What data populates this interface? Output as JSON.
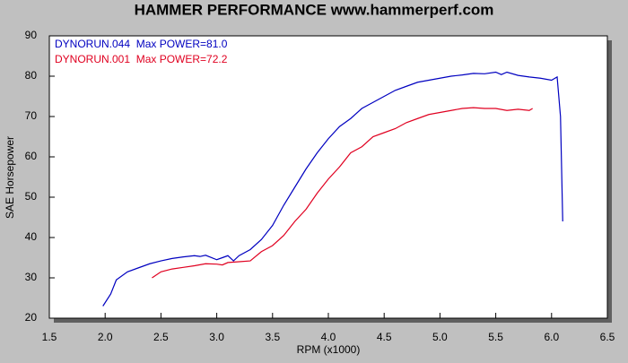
{
  "chart_data": {
    "type": "line",
    "title": "HAMMER PERFORMANCE www.hammerperf.com",
    "x_label": "RPM (x1000)",
    "y_label": "SAE Horsepower",
    "xlim": [
      1.5,
      6.5
    ],
    "xticks": [
      1.5,
      {
        "value": 2,
        "label": "2.0"
      },
      2.5,
      {
        "value": 3,
        "label": "3.0"
      },
      3.5,
      {
        "value": 4,
        "label": "4.0"
      },
      4.5,
      {
        "value": 5,
        "label": "5.0"
      },
      5.5,
      {
        "value": 6,
        "label": "6.0"
      },
      6.5
    ],
    "ylim": [
      20,
      90
    ],
    "yticks": [
      20,
      30,
      40,
      50,
      60,
      70,
      80,
      90
    ],
    "series": [
      {
        "name": "DYNORUN.044  Max POWER=81.0",
        "color": "#0000c0",
        "x": [
          1.98,
          2.05,
          2.1,
          2.2,
          2.3,
          2.4,
          2.5,
          2.6,
          2.7,
          2.8,
          2.85,
          2.9,
          3.0,
          3.05,
          3.1,
          3.15,
          3.2,
          3.3,
          3.4,
          3.5,
          3.6,
          3.7,
          3.8,
          3.9,
          4.0,
          4.1,
          4.2,
          4.3,
          4.4,
          4.5,
          4.6,
          4.7,
          4.8,
          4.9,
          5.0,
          5.1,
          5.2,
          5.3,
          5.4,
          5.5,
          5.55,
          5.6,
          5.7,
          5.8,
          5.9,
          6.0,
          6.05,
          6.08,
          6.1
        ],
        "values": [
          23,
          26,
          29.5,
          31.5,
          32.5,
          33.5,
          34.2,
          34.8,
          35.2,
          35.5,
          35.3,
          35.6,
          34.5,
          35,
          35.5,
          34.2,
          35.5,
          37,
          39.5,
          43,
          48,
          52.5,
          57,
          61,
          64.5,
          67.5,
          69.5,
          72,
          73.5,
          75,
          76.5,
          77.5,
          78.5,
          79,
          79.5,
          80,
          80.3,
          80.7,
          80.6,
          81,
          80.4,
          81,
          80.2,
          79.8,
          79.5,
          79,
          79.8,
          70,
          44
        ]
      },
      {
        "name": "DYNORUN.001  Max POWER=72.2",
        "color": "#e00020",
        "x": [
          2.42,
          2.5,
          2.6,
          2.7,
          2.8,
          2.9,
          3.0,
          3.05,
          3.1,
          3.2,
          3.3,
          3.4,
          3.5,
          3.6,
          3.7,
          3.8,
          3.9,
          4.0,
          4.1,
          4.2,
          4.3,
          4.4,
          4.5,
          4.6,
          4.7,
          4.8,
          4.9,
          5.0,
          5.1,
          5.2,
          5.3,
          5.4,
          5.5,
          5.6,
          5.7,
          5.8,
          5.83
        ],
        "values": [
          30,
          31.5,
          32.2,
          32.6,
          33,
          33.5,
          33.4,
          33.2,
          33.8,
          34,
          34.2,
          36.5,
          38,
          40.5,
          44,
          47,
          51,
          54.5,
          57.5,
          61,
          62.5,
          65,
          66,
          67,
          68.5,
          69.5,
          70.5,
          71,
          71.5,
          72,
          72.2,
          72,
          72,
          71.5,
          71.8,
          71.5,
          72
        ]
      }
    ]
  }
}
